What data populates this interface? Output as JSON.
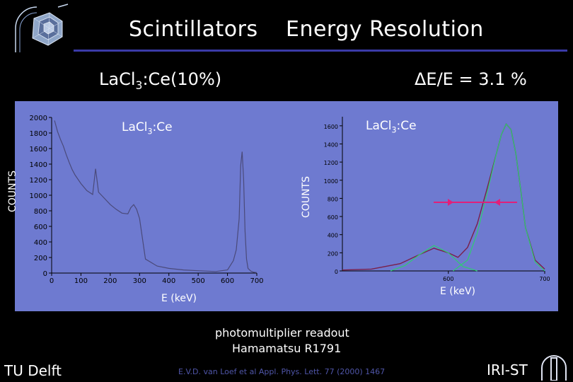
{
  "header": {
    "title_left": "Scintillators",
    "title_right": "Energy Resolution"
  },
  "compound": {
    "prefix": "LaCl",
    "sub": "3",
    "suffix": ":Ce(10%)"
  },
  "resolution": "ΔE/E = 3.1 %",
  "left_plot": {
    "label_prefix": "LaCl",
    "label_sub": "3",
    "label_suffix": ":Ce",
    "ylabel": "COUNTS",
    "xlabel": "E (keV)"
  },
  "right_plot": {
    "label_prefix": "LaCl",
    "label_sub": "3",
    "label_suffix": ":Ce",
    "ylabel": "COUNTS",
    "xlabel": "E (keV)"
  },
  "readout": {
    "line1": "photomultiplier readout",
    "line2": "Hamamatsu R1791"
  },
  "footer": {
    "left": "TU Delft",
    "reference": "E.V.D. van Loef et al   Appl. Phys. Lett. 77 (2000) 1467",
    "right": "IRI-ST"
  },
  "colors": {
    "background": "#000000",
    "panel": "#6e7ad0",
    "rule": "#3a3aa8",
    "fit": "#2ecc71",
    "fwhm_arrow": "#e0207a",
    "spectrum": "#7a1f4a"
  },
  "chart_data": [
    {
      "type": "line",
      "xlim": [
        0,
        700
      ],
      "ylim": [
        0,
        2000
      ],
      "xticks": [
        "0",
        "100",
        "200",
        "300",
        "400",
        "500",
        "600",
        "700"
      ],
      "yticks": [
        "0",
        "200",
        "400",
        "600",
        "800",
        "1000",
        "1200",
        "1400",
        "1600",
        "1800",
        "2000"
      ],
      "series": [
        {
          "x": [
            10,
            20,
            30,
            40,
            50,
            60,
            70,
            80,
            100,
            120,
            140,
            150,
            160,
            180,
            200,
            220,
            240,
            260,
            270,
            280,
            290,
            300,
            320,
            360,
            400,
            450,
            500,
            560,
            600,
            620,
            630,
            640,
            645,
            650,
            655,
            660,
            665,
            670,
            680,
            690,
            700
          ],
          "y": [
            1960,
            1820,
            1720,
            1630,
            1520,
            1420,
            1330,
            1260,
            1150,
            1060,
            1010,
            1340,
            1040,
            960,
            880,
            820,
            770,
            760,
            840,
            880,
            820,
            700,
            180,
            90,
            60,
            40,
            30,
            20,
            40,
            160,
            300,
            700,
            1380,
            1560,
            1200,
            540,
            180,
            60,
            25,
            10,
            5
          ]
        }
      ]
    },
    {
      "type": "line",
      "xlim": [
        490,
        700
      ],
      "ylim": [
        0,
        1700
      ],
      "xticks": [
        "600",
        "700"
      ],
      "yticks": [
        "0",
        "200",
        "400",
        "600",
        "800",
        "1000",
        "1200",
        "1400",
        "1600"
      ],
      "series": [
        {
          "x": [
            490,
            520,
            550,
            570,
            585,
            600,
            610,
            620,
            630,
            640,
            650,
            655,
            660,
            665,
            670,
            675,
            680,
            690,
            700
          ],
          "y": [
            10,
            20,
            80,
            180,
            250,
            200,
            150,
            260,
            520,
            900,
            1300,
            1500,
            1620,
            1560,
            1300,
            900,
            480,
            120,
            20
          ]
        },
        {
          "x": [
            540,
            555,
            570,
            585,
            600,
            615,
            630
          ],
          "y": [
            0,
            60,
            180,
            280,
            200,
            50,
            0
          ]
        },
        {
          "x": [
            605,
            620,
            630,
            640,
            650,
            655,
            660,
            665,
            670,
            675,
            680,
            690,
            700
          ],
          "y": [
            0,
            120,
            420,
            850,
            1300,
            1500,
            1620,
            1560,
            1300,
            900,
            480,
            100,
            0
          ]
        }
      ]
    }
  ]
}
